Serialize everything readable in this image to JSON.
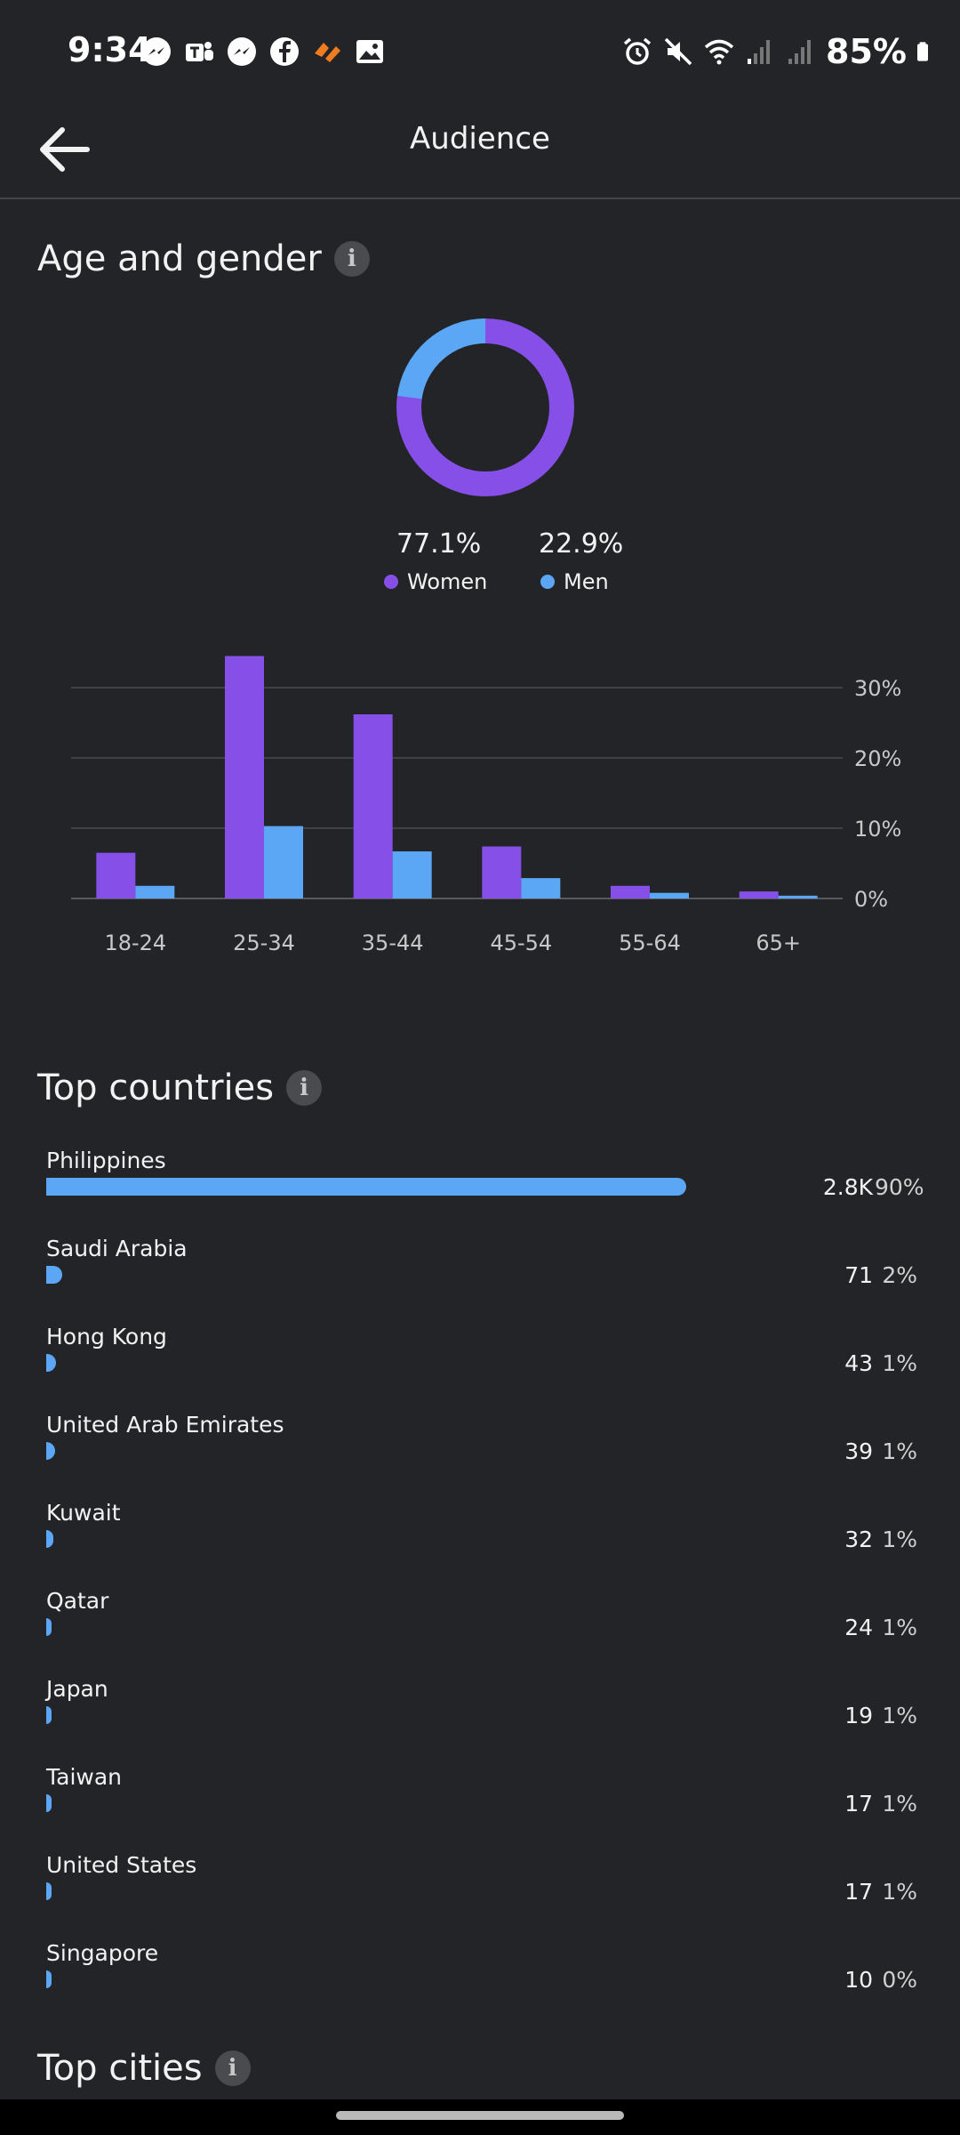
{
  "status_bar": {
    "time": "9:34",
    "battery": "85%",
    "left_icons": [
      "messenger-icon",
      "teams-icon",
      "messenger-icon",
      "facebook-icon",
      "orange-app-icon",
      "gallery-icon"
    ],
    "right_icons": [
      "alarm-icon",
      "mute-icon",
      "wifi-icon",
      "signal-icon",
      "signal-icon",
      "battery-icon"
    ]
  },
  "header": {
    "title": "Audience"
  },
  "age_gender": {
    "title": "Age and gender",
    "women_pct": "77.1%",
    "men_pct": "22.9%",
    "women_label": "Women",
    "men_label": "Men",
    "women_color": "#8650e8",
    "men_color": "#5ba7f5"
  },
  "chart_data": [
    {
      "type": "pie",
      "categories": [
        "Women",
        "Men"
      ],
      "values": [
        77.1,
        22.9
      ],
      "colors": [
        "#8650e8",
        "#5ba7f5"
      ]
    },
    {
      "type": "bar",
      "categories": [
        "18-24",
        "25-34",
        "35-44",
        "45-54",
        "55-64",
        "65+"
      ],
      "series": [
        {
          "name": "Women",
          "values": [
            6.5,
            34.5,
            26.2,
            7.4,
            1.8,
            1.0
          ],
          "color": "#8650e8"
        },
        {
          "name": "Men",
          "values": [
            1.8,
            10.3,
            6.7,
            2.9,
            0.8,
            0.4
          ],
          "color": "#5ba7f5"
        }
      ],
      "yticks": [
        "0%",
        "10%",
        "20%",
        "30%"
      ],
      "ylim": [
        0,
        30
      ],
      "grid": true
    }
  ],
  "top_countries": {
    "title": "Top countries",
    "items": [
      {
        "name": "Philippines",
        "count": "2.8K",
        "pct": "90%",
        "fraction": 0.9
      },
      {
        "name": "Saudi Arabia",
        "count": "71",
        "pct": "2%",
        "fraction": 0.023
      },
      {
        "name": "Hong Kong",
        "count": "43",
        "pct": "1%",
        "fraction": 0.014
      },
      {
        "name": "United Arab Emirates",
        "count": "39",
        "pct": "1%",
        "fraction": 0.0125
      },
      {
        "name": "Kuwait",
        "count": "32",
        "pct": "1%",
        "fraction": 0.0105
      },
      {
        "name": "Qatar",
        "count": "24",
        "pct": "1%",
        "fraction": 0.008
      },
      {
        "name": "Japan",
        "count": "19",
        "pct": "1%",
        "fraction": 0.0065
      },
      {
        "name": "Taiwan",
        "count": "17",
        "pct": "1%",
        "fraction": 0.006
      },
      {
        "name": "United States",
        "count": "17",
        "pct": "1%",
        "fraction": 0.006
      },
      {
        "name": "Singapore",
        "count": "10",
        "pct": "0%",
        "fraction": 0.0045
      }
    ]
  },
  "top_cities": {
    "title": "Top cities"
  }
}
